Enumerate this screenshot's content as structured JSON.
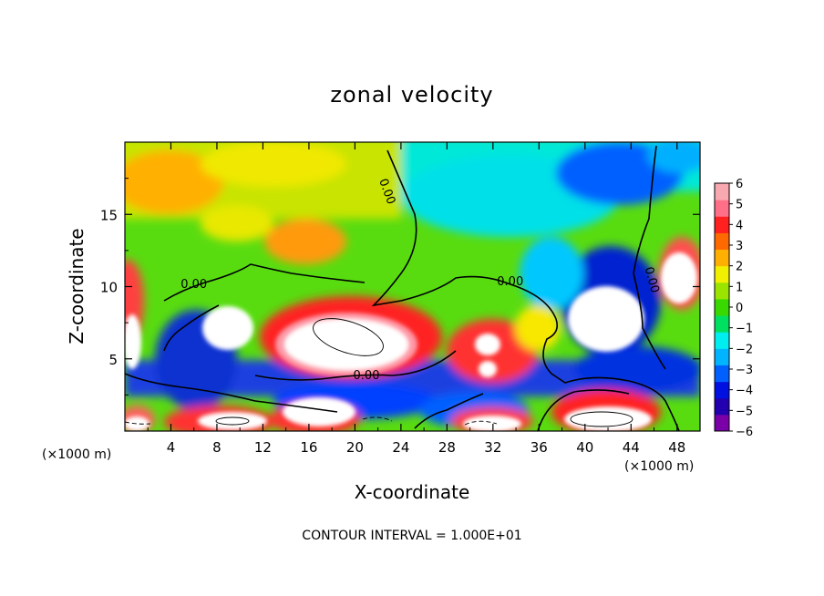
{
  "chart_data": {
    "type": "heatmap",
    "title": "zonal velocity",
    "xlabel": "X-coordinate",
    "ylabel": "Z-coordinate",
    "x_unit_left": "(×1000 m)",
    "x_unit_right": "(×1000 m)",
    "xlim": [
      0,
      50
    ],
    "ylim": [
      0,
      20
    ],
    "x_ticks": [
      "4",
      "8",
      "12",
      "16",
      "20",
      "24",
      "28",
      "32",
      "36",
      "40",
      "44",
      "48"
    ],
    "x_tick_values": [
      4,
      8,
      12,
      16,
      20,
      24,
      28,
      32,
      36,
      40,
      44,
      48
    ],
    "y_ticks": [
      "5",
      "10",
      "15"
    ],
    "y_tick_values": [
      5,
      10,
      15
    ],
    "colorbar": {
      "ticks": [
        "6",
        "5",
        "4",
        "3",
        "2",
        "1",
        "0",
        "−1",
        "−2",
        "−3",
        "−4",
        "−5",
        "−6"
      ],
      "min": -6,
      "max": 6,
      "colors": [
        "#7a00a8",
        "#2200b0",
        "#0010e0",
        "#0060ff",
        "#00b4ff",
        "#00eef0",
        "#00e060",
        "#38d800",
        "#9ae400",
        "#f0f000",
        "#ffb000",
        "#ff6a00",
        "#ff2020",
        "#ff7088",
        "#f8a8b0"
      ]
    },
    "contour_labels": [
      "0.00",
      "0.00",
      "0.00",
      "0.00",
      "0.00"
    ],
    "annotation": "CONTOUR INTERVAL = 1.000E+01",
    "grid": false
  }
}
